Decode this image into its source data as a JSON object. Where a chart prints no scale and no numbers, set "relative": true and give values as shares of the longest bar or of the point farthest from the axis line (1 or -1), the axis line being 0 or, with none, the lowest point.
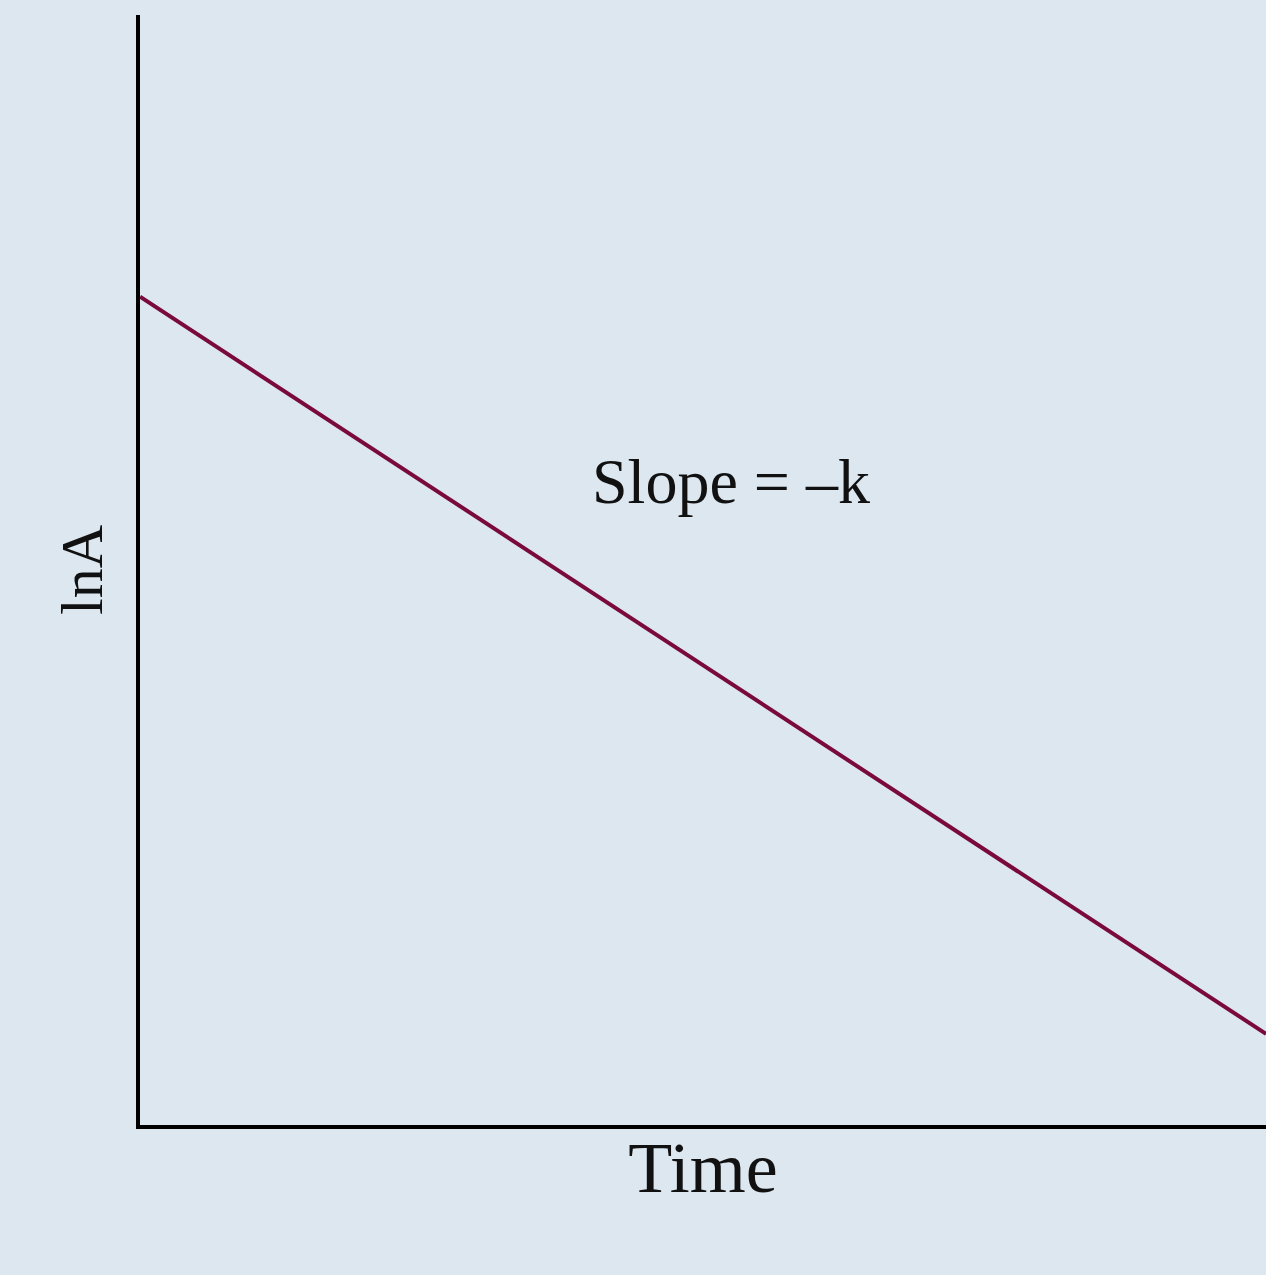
{
  "chart_data": {
    "type": "line",
    "relative": true,
    "categories": [
      null,
      null
    ],
    "series": [
      {
        "color": "#7a0a3c",
        "values": [
          1,
          0.11
        ]
      }
    ],
    "xlabel": "Time",
    "ylabel": "lnA",
    "annotations": [
      "Slope = –k"
    ],
    "marker": "none",
    "line_style": "solid",
    "grid": false,
    "tick_labels": false
  }
}
